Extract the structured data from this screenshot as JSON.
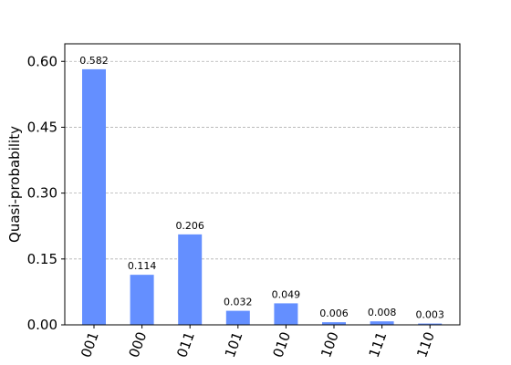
{
  "chart_data": {
    "type": "bar",
    "title": "",
    "xlabel": "",
    "ylabel": "Quasi-probability",
    "categories": [
      "001",
      "000",
      "011",
      "101",
      "010",
      "100",
      "111",
      "110"
    ],
    "values": [
      0.582,
      0.114,
      0.206,
      0.032,
      0.049,
      0.006,
      0.008,
      0.003
    ],
    "value_labels": [
      "0.582",
      "0.114",
      "0.206",
      "0.032",
      "0.049",
      "0.006",
      "0.008",
      "0.003"
    ],
    "ylim": [
      0,
      0.64
    ],
    "yticks": [
      0.0,
      0.15,
      0.3,
      0.45,
      0.6
    ],
    "ytick_labels": [
      "0.00",
      "0.15",
      "0.30",
      "0.45",
      "0.60"
    ],
    "grid": "horizontal-dashed",
    "bar_color": "#648fff",
    "grid_color": "#b0b0b0"
  }
}
